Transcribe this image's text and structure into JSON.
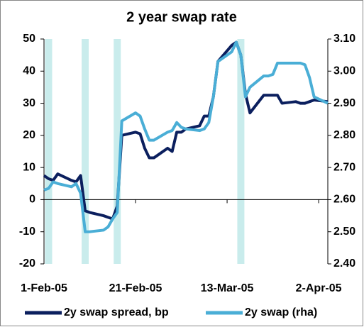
{
  "chart_data": {
    "type": "line",
    "title": "2 year swap rate",
    "x": [
      "2005-02-01",
      "2005-02-02",
      "2005-02-03",
      "2005-02-04",
      "2005-02-07",
      "2005-02-08",
      "2005-02-09",
      "2005-02-10",
      "2005-02-11",
      "2005-02-14",
      "2005-02-15",
      "2005-02-16",
      "2005-02-17",
      "2005-02-18",
      "2005-02-21",
      "2005-02-22",
      "2005-02-23",
      "2005-02-24",
      "2005-02-25",
      "2005-02-28",
      "2005-03-01",
      "2005-03-02",
      "2005-03-03",
      "2005-03-04",
      "2005-03-07",
      "2005-03-08",
      "2005-03-09",
      "2005-03-10",
      "2005-03-11",
      "2005-03-14",
      "2005-03-15",
      "2005-03-16",
      "2005-03-17",
      "2005-03-18",
      "2005-03-21",
      "2005-03-22",
      "2005-03-23",
      "2005-03-24",
      "2005-03-25",
      "2005-03-28",
      "2005-03-29",
      "2005-03-30",
      "2005-03-31",
      "2005-04-01",
      "2005-04-04"
    ],
    "series": [
      {
        "name": "2y swap spread, bp",
        "color": "#0b1f5e",
        "values": [
          7.5,
          6.5,
          6,
          8,
          6,
          5.5,
          7.5,
          -3.5,
          -4,
          -5,
          -5.5,
          -6,
          -2,
          20,
          21,
          20.5,
          16,
          13,
          13,
          16,
          15,
          21,
          21,
          22,
          23,
          26,
          26,
          32,
          43,
          48,
          49,
          45,
          33,
          27,
          32.5,
          32.5,
          32.5,
          32.5,
          30,
          30.5,
          30,
          30,
          30.5,
          31,
          30.5
        ]
      },
      {
        "name": "2y swap (rha)",
        "color": "#4aaed6",
        "axis": "y2",
        "values": [
          2.63,
          2.635,
          2.655,
          2.65,
          2.64,
          2.65,
          2.62,
          2.5,
          2.5,
          2.505,
          2.515,
          2.54,
          2.56,
          2.845,
          2.87,
          2.86,
          2.82,
          2.785,
          2.785,
          2.81,
          2.815,
          2.84,
          2.825,
          2.82,
          2.815,
          2.82,
          2.84,
          2.92,
          3.03,
          3.06,
          3.09,
          3.05,
          2.92,
          2.95,
          2.985,
          2.985,
          2.99,
          3.025,
          3.025,
          3.025,
          3.025,
          3.02,
          2.98,
          2.92,
          2.9
        ]
      }
    ],
    "highlights": [
      "2005-02-02",
      "2005-02-10",
      "2005-02-17",
      "2005-03-16"
    ],
    "highlight_color": "#c9ecec",
    "xlim": [
      "2005-02-01",
      "2005-04-04"
    ],
    "xticks": [
      {
        "value": "2005-02-01",
        "label": "1-Feb-05"
      },
      {
        "value": "2005-02-21",
        "label": "21-Feb-05"
      },
      {
        "value": "2005-03-13",
        "label": "13-Mar-05"
      },
      {
        "value": "2005-04-02",
        "label": "2-Apr-05"
      }
    ],
    "ylim": [
      -20,
      50
    ],
    "yticks": [
      -20,
      -10,
      0,
      10,
      20,
      30,
      40,
      50
    ],
    "y2lim": [
      2.4,
      3.1
    ],
    "y2ticks": [
      {
        "value": 2.4,
        "label": "2.40"
      },
      {
        "value": 2.5,
        "label": "2.50"
      },
      {
        "value": 2.6,
        "label": "2.60"
      },
      {
        "value": 2.7,
        "label": "2.70"
      },
      {
        "value": 2.8,
        "label": "2.80"
      },
      {
        "value": 2.9,
        "label": "2.90"
      },
      {
        "value": 3.0,
        "label": "3.00"
      },
      {
        "value": 3.1,
        "label": "3.10"
      }
    ],
    "legend": "bottom"
  }
}
